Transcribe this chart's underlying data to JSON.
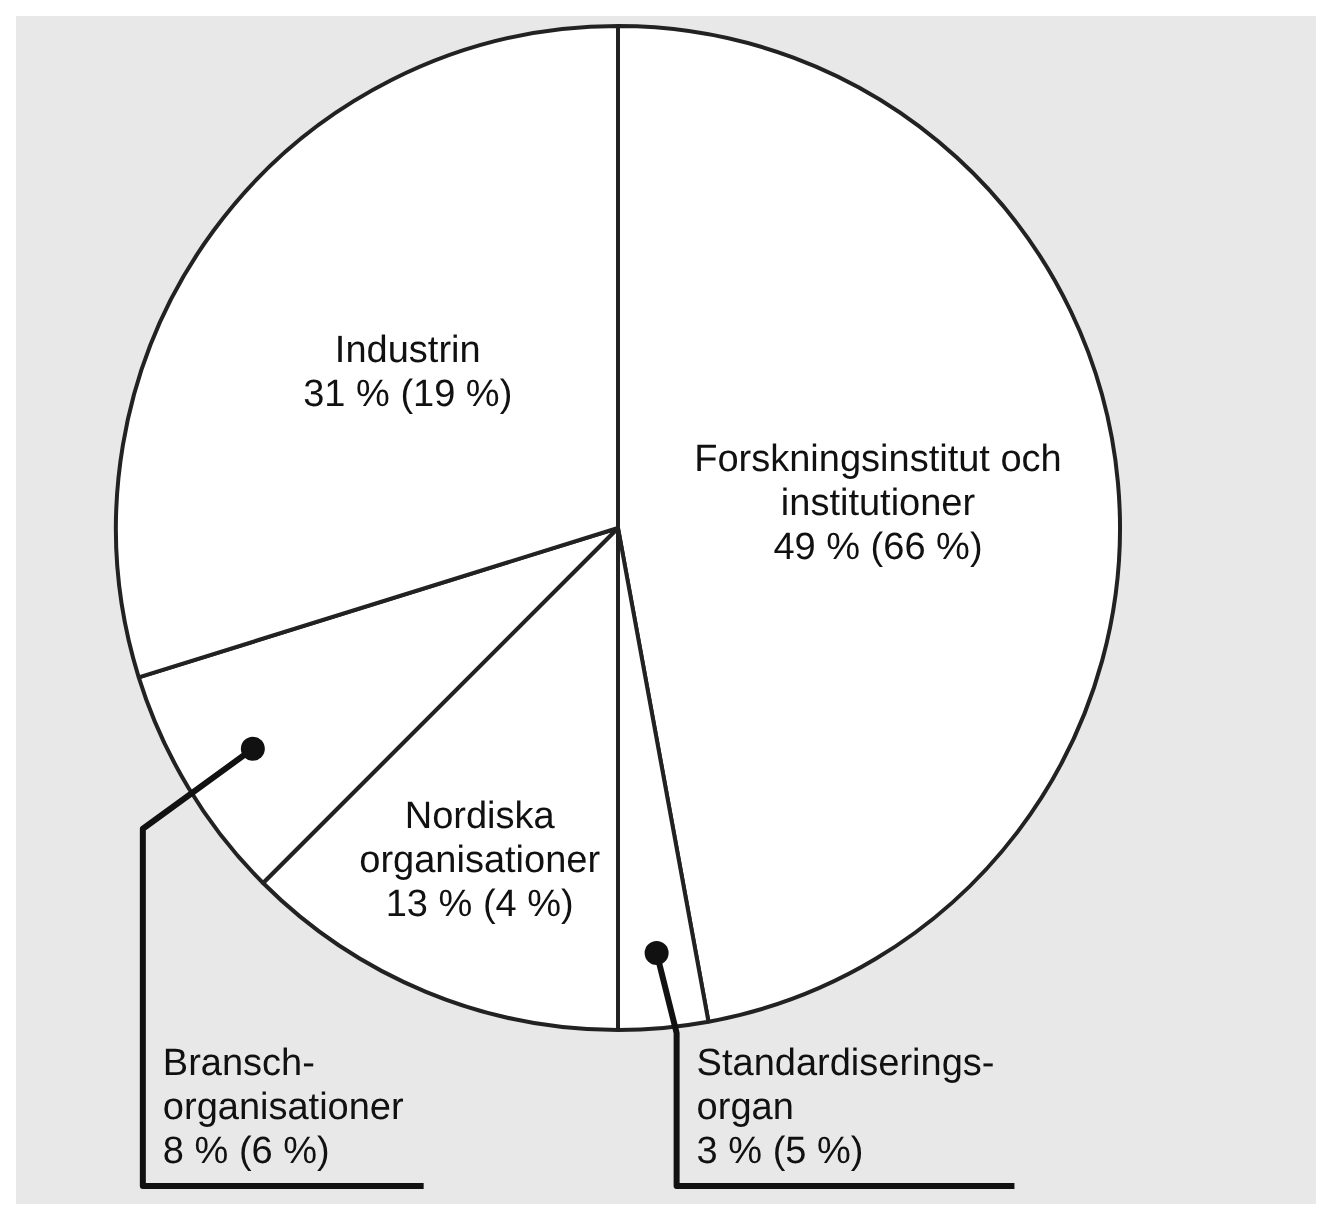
{
  "chart_data": {
    "type": "pie",
    "categories": [
      "Forskningsinstitut och institutioner",
      "Standardiserings-organ",
      "Nordiska organisationer",
      "Bransch-organisationer",
      "Industrin"
    ],
    "values": [
      49,
      3,
      13,
      8,
      31
    ],
    "value_labels": [
      "49 % (66 %)",
      "3 % (5 %)",
      "13 % (4 %)",
      "8 % (6 %)",
      "31 % (19 %)"
    ],
    "colors": [
      "#ffffff",
      "#ffffff",
      "#ffffff",
      "#ffffff",
      "#ffffff"
    ],
    "legend": false
  }
}
